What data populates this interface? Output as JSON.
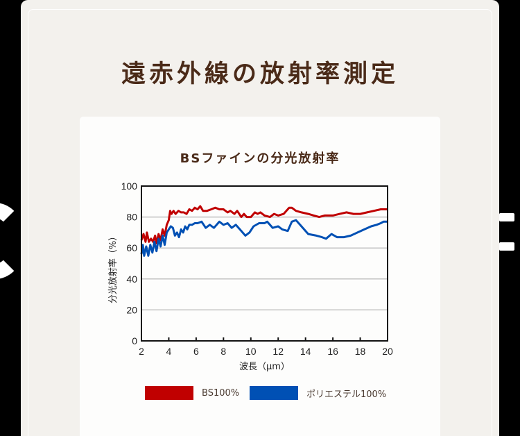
{
  "page": {
    "title": "遠赤外線の放射率測定"
  },
  "colors": {
    "background": "#000000",
    "panel": "#f3f1ed",
    "card": "#fdfdfc",
    "title_text": "#4a2a18",
    "series_bs": "#c00000",
    "series_poly": "#0050b4",
    "grid": "#b0b0b0"
  },
  "legend": [
    {
      "label": "BS100%",
      "color": "#c00000"
    },
    {
      "label": "ポリエステル100%",
      "color": "#0050b4"
    }
  ],
  "chart_data": {
    "type": "line",
    "title": "BSファインの分光放射率",
    "xlabel": "波長（μm）",
    "ylabel": "分光放射率（%）",
    "xlim": [
      2,
      20
    ],
    "ylim": [
      0,
      100
    ],
    "x_ticks": [
      2,
      4,
      6,
      8,
      10,
      12,
      14,
      16,
      18,
      20
    ],
    "y_ticks": [
      0,
      20,
      40,
      60,
      80,
      100
    ],
    "grid": {
      "horizontal": true,
      "vertical": false
    },
    "legend_position": "bottom",
    "series": [
      {
        "name": "BS100%",
        "color": "#c00000",
        "points": [
          [
            2.0,
            65
          ],
          [
            2.15,
            69
          ],
          [
            2.3,
            64
          ],
          [
            2.4,
            70
          ],
          [
            2.55,
            64
          ],
          [
            2.7,
            66
          ],
          [
            2.85,
            64
          ],
          [
            3.0,
            68
          ],
          [
            3.1,
            63
          ],
          [
            3.25,
            69
          ],
          [
            3.4,
            65
          ],
          [
            3.55,
            72
          ],
          [
            3.7,
            68
          ],
          [
            3.85,
            75
          ],
          [
            4.0,
            78
          ],
          [
            4.1,
            84
          ],
          [
            4.2,
            82
          ],
          [
            4.35,
            84
          ],
          [
            4.5,
            82
          ],
          [
            4.7,
            84
          ],
          [
            4.9,
            83
          ],
          [
            5.1,
            83
          ],
          [
            5.3,
            82
          ],
          [
            5.5,
            85
          ],
          [
            5.7,
            84
          ],
          [
            5.9,
            86
          ],
          [
            6.1,
            85
          ],
          [
            6.3,
            87
          ],
          [
            6.5,
            84
          ],
          [
            6.8,
            84
          ],
          [
            7.1,
            85
          ],
          [
            7.4,
            86
          ],
          [
            7.7,
            85
          ],
          [
            8.0,
            85
          ],
          [
            8.3,
            83
          ],
          [
            8.5,
            84
          ],
          [
            8.8,
            82
          ],
          [
            9.0,
            84
          ],
          [
            9.3,
            80
          ],
          [
            9.5,
            82
          ],
          [
            9.7,
            80
          ],
          [
            10.0,
            80
          ],
          [
            10.3,
            83
          ],
          [
            10.5,
            82
          ],
          [
            10.7,
            83
          ],
          [
            11.0,
            81
          ],
          [
            11.4,
            80
          ],
          [
            11.7,
            82
          ],
          [
            12.0,
            81
          ],
          [
            12.4,
            82
          ],
          [
            12.8,
            86
          ],
          [
            13.0,
            86
          ],
          [
            13.3,
            84
          ],
          [
            13.7,
            83
          ],
          [
            14.2,
            82
          ],
          [
            14.6,
            81
          ],
          [
            15.0,
            80
          ],
          [
            15.4,
            81
          ],
          [
            16.0,
            81
          ],
          [
            16.5,
            82
          ],
          [
            17.0,
            83
          ],
          [
            17.5,
            82
          ],
          [
            18.0,
            82
          ],
          [
            18.5,
            83
          ],
          [
            19.0,
            84
          ],
          [
            19.5,
            85
          ],
          [
            20.0,
            85
          ]
        ]
      },
      {
        "name": "ポリエステル100%",
        "color": "#0050b4",
        "points": [
          [
            2.0,
            56
          ],
          [
            2.1,
            62
          ],
          [
            2.2,
            55
          ],
          [
            2.35,
            61
          ],
          [
            2.5,
            55
          ],
          [
            2.65,
            62
          ],
          [
            2.8,
            57
          ],
          [
            2.95,
            64
          ],
          [
            3.1,
            58
          ],
          [
            3.25,
            66
          ],
          [
            3.4,
            61
          ],
          [
            3.55,
            68
          ],
          [
            3.7,
            62
          ],
          [
            3.85,
            70
          ],
          [
            4.0,
            72
          ],
          [
            4.15,
            74
          ],
          [
            4.3,
            73
          ],
          [
            4.45,
            68
          ],
          [
            4.6,
            70
          ],
          [
            4.75,
            67
          ],
          [
            4.9,
            72
          ],
          [
            5.05,
            70
          ],
          [
            5.2,
            74
          ],
          [
            5.35,
            72
          ],
          [
            5.5,
            75
          ],
          [
            5.7,
            75
          ],
          [
            5.9,
            76
          ],
          [
            6.1,
            76
          ],
          [
            6.4,
            77
          ],
          [
            6.7,
            73
          ],
          [
            7.0,
            75
          ],
          [
            7.3,
            73
          ],
          [
            7.7,
            77
          ],
          [
            8.0,
            75
          ],
          [
            8.3,
            76
          ],
          [
            8.6,
            73
          ],
          [
            8.9,
            75
          ],
          [
            9.2,
            72
          ],
          [
            9.6,
            68
          ],
          [
            9.9,
            70
          ],
          [
            10.2,
            74
          ],
          [
            10.6,
            76
          ],
          [
            11.0,
            76
          ],
          [
            11.2,
            77
          ],
          [
            11.6,
            73
          ],
          [
            12.0,
            74
          ],
          [
            12.3,
            72
          ],
          [
            12.7,
            71
          ],
          [
            13.0,
            77
          ],
          [
            13.3,
            78
          ],
          [
            13.7,
            74
          ],
          [
            14.2,
            69
          ],
          [
            14.8,
            68
          ],
          [
            15.2,
            67
          ],
          [
            15.5,
            66
          ],
          [
            15.9,
            69
          ],
          [
            16.3,
            67
          ],
          [
            16.8,
            67
          ],
          [
            17.3,
            68
          ],
          [
            17.8,
            70
          ],
          [
            18.3,
            72
          ],
          [
            18.8,
            74
          ],
          [
            19.2,
            75
          ],
          [
            19.5,
            76
          ],
          [
            19.7,
            77
          ],
          [
            20.0,
            77
          ]
        ]
      }
    ]
  }
}
